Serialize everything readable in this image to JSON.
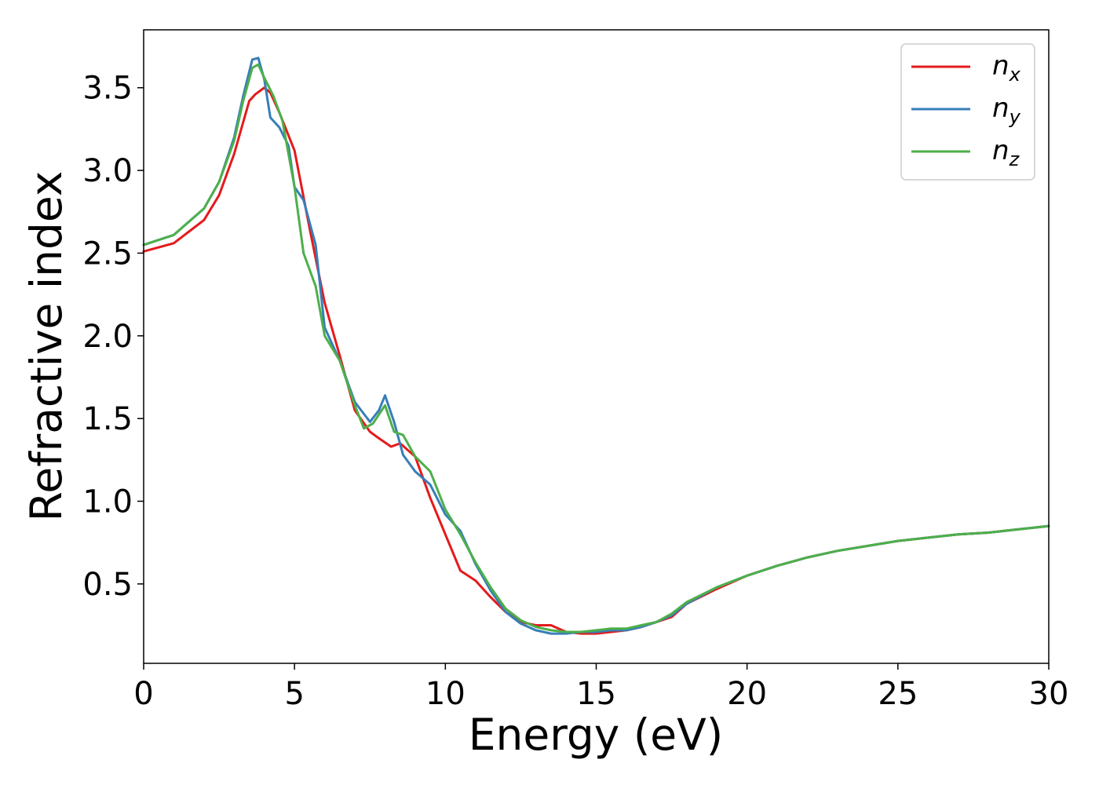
{
  "chart_data": {
    "type": "line",
    "title": "",
    "xlabel": "Energy (eV)",
    "ylabel": "Refractive index",
    "xlim": [
      0,
      30
    ],
    "ylim": [
      0.02,
      3.85
    ],
    "xticks": [
      0,
      5,
      10,
      15,
      20,
      25,
      30
    ],
    "xtick_labels": [
      "0",
      "5",
      "10",
      "15",
      "20",
      "25",
      "30"
    ],
    "yticks": [
      0.5,
      1.0,
      1.5,
      2.0,
      2.5,
      3.0,
      3.5
    ],
    "ytick_labels": [
      "0.5",
      "1.0",
      "1.5",
      "2.0",
      "2.5",
      "3.0",
      "3.5"
    ],
    "grid": false,
    "legend_position": "top-right",
    "series": [
      {
        "name": "n_x",
        "label_base": "n",
        "label_sub": "x",
        "color": "#e41a1c",
        "x": [
          0,
          1,
          2,
          2.5,
          3,
          3.5,
          3.7,
          4.0,
          4.2,
          4.5,
          5.0,
          5.5,
          6.0,
          6.5,
          7.0,
          7.5,
          7.8,
          8.2,
          8.5,
          9.0,
          9.5,
          10.0,
          10.5,
          11.0,
          11.5,
          12.0,
          12.5,
          13.0,
          13.5,
          14.0,
          14.5,
          15.0,
          15.5,
          16.0,
          16.5,
          17.0,
          17.5,
          18.0,
          19.0,
          20.0,
          21.0,
          22.0,
          23.0,
          24.0,
          25.0,
          26.0,
          27.0,
          28.0,
          29.0,
          30.0
        ],
        "y": [
          2.51,
          2.56,
          2.7,
          2.85,
          3.1,
          3.42,
          3.46,
          3.5,
          3.47,
          3.35,
          3.12,
          2.65,
          2.2,
          1.88,
          1.55,
          1.42,
          1.38,
          1.33,
          1.35,
          1.27,
          1.02,
          0.8,
          0.58,
          0.52,
          0.42,
          0.33,
          0.27,
          0.25,
          0.25,
          0.21,
          0.2,
          0.2,
          0.21,
          0.22,
          0.24,
          0.27,
          0.3,
          0.38,
          0.47,
          0.55,
          0.61,
          0.66,
          0.7,
          0.73,
          0.76,
          0.78,
          0.8,
          0.81,
          0.83,
          0.85
        ]
      },
      {
        "name": "n_y",
        "label_base": "n",
        "label_sub": "y",
        "color": "#377eb8",
        "x": [
          0,
          1,
          2,
          2.5,
          3,
          3.3,
          3.6,
          3.8,
          4.0,
          4.2,
          4.5,
          4.8,
          5.0,
          5.3,
          5.7,
          6.0,
          6.5,
          7.0,
          7.5,
          7.8,
          8.0,
          8.3,
          8.6,
          9.0,
          9.5,
          10.0,
          10.5,
          11.0,
          11.5,
          12.0,
          12.5,
          13.0,
          13.5,
          14.0,
          14.5,
          15.0,
          15.5,
          16.0,
          16.5,
          17.0,
          17.5,
          18.0,
          19.0,
          20.0,
          21.0,
          22.0,
          23.0,
          24.0,
          25.0,
          26.0,
          27.0,
          28.0,
          29.0,
          30.0
        ],
        "y": [
          2.55,
          2.61,
          2.77,
          2.93,
          3.2,
          3.45,
          3.67,
          3.68,
          3.55,
          3.32,
          3.26,
          3.15,
          2.9,
          2.82,
          2.55,
          2.05,
          1.85,
          1.6,
          1.48,
          1.55,
          1.64,
          1.48,
          1.28,
          1.18,
          1.1,
          0.92,
          0.82,
          0.62,
          0.46,
          0.33,
          0.26,
          0.22,
          0.2,
          0.2,
          0.21,
          0.21,
          0.22,
          0.22,
          0.24,
          0.27,
          0.31,
          0.38,
          0.48,
          0.55,
          0.61,
          0.66,
          0.7,
          0.73,
          0.76,
          0.78,
          0.8,
          0.81,
          0.83,
          0.85
        ]
      },
      {
        "name": "n_z",
        "label_base": "n",
        "label_sub": "z",
        "color": "#4daf4a",
        "x": [
          0,
          1,
          2,
          2.5,
          3,
          3.3,
          3.6,
          3.8,
          4.0,
          4.3,
          4.6,
          5.0,
          5.3,
          5.7,
          6.0,
          6.5,
          7.0,
          7.3,
          7.6,
          8.0,
          8.3,
          8.6,
          9.0,
          9.5,
          10.0,
          10.5,
          11.0,
          11.5,
          12.0,
          12.5,
          13.0,
          13.5,
          14.0,
          14.5,
          15.0,
          15.5,
          16.0,
          16.5,
          17.0,
          17.5,
          18.0,
          19.0,
          20.0,
          21.0,
          22.0,
          23.0,
          24.0,
          25.0,
          26.0,
          27.0,
          28.0,
          29.0,
          30.0
        ],
        "y": [
          2.55,
          2.61,
          2.77,
          2.93,
          3.18,
          3.42,
          3.62,
          3.64,
          3.56,
          3.45,
          3.3,
          2.9,
          2.5,
          2.3,
          2.0,
          1.85,
          1.58,
          1.44,
          1.47,
          1.58,
          1.42,
          1.4,
          1.27,
          1.18,
          0.95,
          0.8,
          0.63,
          0.48,
          0.35,
          0.28,
          0.24,
          0.22,
          0.21,
          0.21,
          0.22,
          0.23,
          0.23,
          0.25,
          0.27,
          0.32,
          0.39,
          0.48,
          0.55,
          0.61,
          0.66,
          0.7,
          0.73,
          0.76,
          0.78,
          0.8,
          0.81,
          0.83,
          0.85
        ]
      }
    ]
  }
}
